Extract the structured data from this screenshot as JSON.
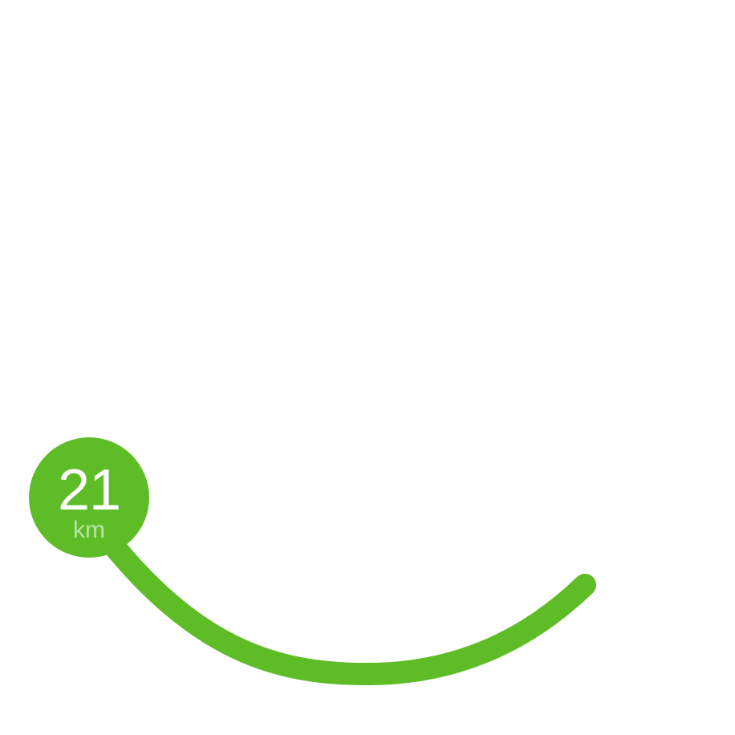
{
  "distance": {
    "value": "21",
    "unit": "km",
    "progress_fraction": 0.42
  },
  "colors": {
    "accent": "#5ebd27",
    "unit_text": "#b8e4a4",
    "background": "#ffffff"
  }
}
